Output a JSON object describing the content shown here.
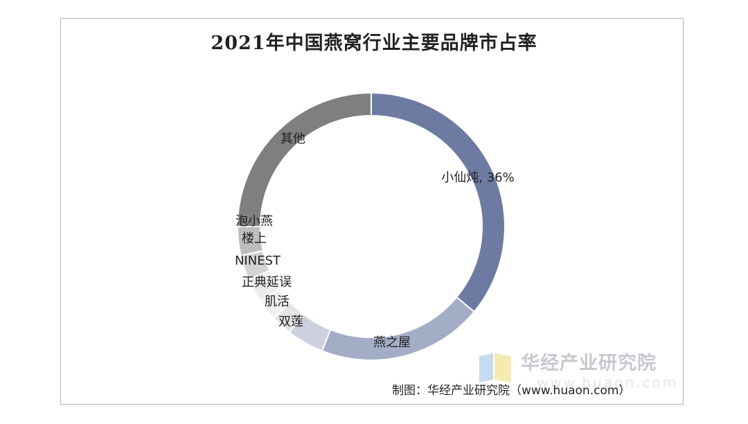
{
  "chart_data": {
    "type": "pie",
    "donut": true,
    "title": "2021年中国燕窝行业主要品牌市占率",
    "slices": [
      {
        "label": "小仙炖, 36%",
        "value": 36,
        "color": "#6d7ba3"
      },
      {
        "label": "燕之屋",
        "value": 20,
        "color": "#a4adc6"
      },
      {
        "label": "双莲",
        "value": 4.5,
        "color": "#cdd1df"
      },
      {
        "label": "肌活",
        "value": 2.5,
        "color": "#e4e4e4"
      },
      {
        "label": "正典延误",
        "value": 2.5,
        "color": "#f0f0f0"
      },
      {
        "label": "NINEST",
        "value": 3,
        "color": "#ececec"
      },
      {
        "label": "楼上",
        "value": 3,
        "color": "#d3d3d3"
      },
      {
        "label": "泡小燕",
        "value": 3.5,
        "color": "#bdbdbd"
      },
      {
        "label": "其他",
        "value": 25,
        "color": "#7f7f7f"
      }
    ],
    "legend": "none"
  },
  "watermark": {
    "brand": "华经产业研究院",
    "url": "www.huaon.com"
  },
  "source_note": "制图：华经产业研究院（www.huaon.com）"
}
